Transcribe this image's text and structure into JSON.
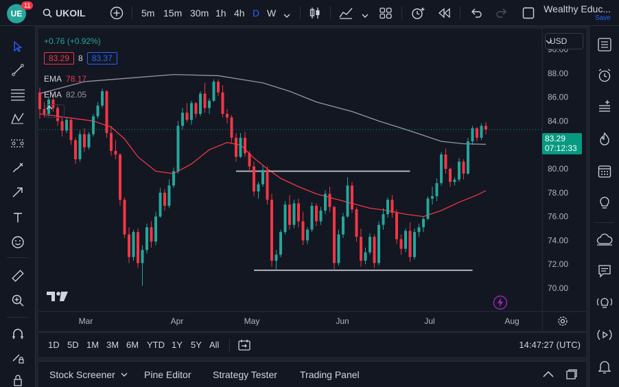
{
  "top": {
    "logo_text": "UE",
    "notifications": "11",
    "symbol": "UKOIL",
    "intervals": [
      "5m",
      "15m",
      "30m",
      "1h",
      "4h",
      "D",
      "W"
    ],
    "active_interval": "D",
    "account_name": "Wealthy Educ...",
    "save_label": "Save"
  },
  "legend": {
    "change": "+0.76 (+0.92%)",
    "bid": "83.29",
    "spread": "8",
    "ask": "83.37",
    "ema1_label": "EMA",
    "ema1_value": "78.17",
    "ema2_label": "EMA",
    "ema2_value": "82.05"
  },
  "currency": "USD",
  "price_tag": {
    "price": "83.29",
    "countdown": "07:12:33"
  },
  "range_buttons": [
    "1D",
    "5D",
    "1M",
    "3M",
    "6M",
    "YTD",
    "1Y",
    "5Y",
    "All"
  ],
  "clock": "14:47:27 (UTC)",
  "panels": [
    "Stock Screener",
    "Pine Editor",
    "Strategy Tester",
    "Trading Panel"
  ],
  "colors": {
    "up": "#26a69a",
    "down": "#f23645",
    "ema_fast": "#f23645",
    "ema_slow": "#9598a1",
    "accent": "#2962ff"
  },
  "chart_data": {
    "type": "candlestick",
    "title": "UKOIL",
    "ylim": [
      68.5,
      91.5
    ],
    "y_ticks": [
      90,
      88,
      86,
      84,
      82,
      80,
      78,
      76,
      74,
      72,
      70
    ],
    "x_ticks": [
      "Mar",
      "Apr",
      "May",
      "Jun",
      "Jul",
      "Aug"
    ],
    "last_price": 83.29,
    "candles": [
      [
        86.4,
        86.8,
        84.2,
        85.0
      ],
      [
        85.0,
        85.6,
        84.3,
        84.6
      ],
      [
        84.6,
        86.0,
        84.4,
        85.8
      ],
      [
        85.8,
        86.3,
        84.8,
        85.1
      ],
      [
        85.1,
        85.3,
        83.6,
        84.0
      ],
      [
        84.0,
        84.4,
        82.7,
        83.2
      ],
      [
        83.2,
        84.3,
        83.0,
        84.1
      ],
      [
        84.1,
        84.2,
        82.0,
        82.4
      ],
      [
        82.4,
        82.6,
        80.4,
        80.8
      ],
      [
        80.8,
        83.2,
        80.6,
        82.9
      ],
      [
        82.9,
        83.4,
        81.4,
        81.8
      ],
      [
        81.8,
        83.1,
        81.6,
        82.9
      ],
      [
        82.9,
        84.6,
        82.7,
        84.4
      ],
      [
        84.4,
        85.6,
        84.2,
        85.3
      ],
      [
        85.3,
        86.7,
        85.1,
        86.5
      ],
      [
        86.5,
        86.6,
        82.6,
        83.0
      ],
      [
        83.0,
        83.6,
        81.1,
        81.5
      ],
      [
        81.5,
        82.4,
        80.8,
        81.2
      ],
      [
        81.2,
        81.3,
        76.9,
        77.4
      ],
      [
        77.4,
        77.6,
        74.2,
        74.5
      ],
      [
        74.5,
        75.1,
        72.1,
        72.6
      ],
      [
        72.6,
        74.9,
        72.3,
        74.7
      ],
      [
        74.7,
        75.0,
        71.7,
        72.1
      ],
      [
        72.1,
        73.6,
        70.2,
        73.2
      ],
      [
        73.2,
        75.4,
        72.9,
        75.1
      ],
      [
        75.1,
        75.6,
        73.4,
        73.9
      ],
      [
        73.9,
        76.4,
        73.6,
        76.0
      ],
      [
        76.0,
        78.4,
        75.9,
        78.0
      ],
      [
        78.0,
        78.3,
        76.5,
        76.9
      ],
      [
        76.9,
        79.1,
        76.7,
        78.6
      ],
      [
        78.6,
        80.1,
        78.4,
        79.8
      ],
      [
        79.8,
        84.0,
        79.6,
        83.6
      ],
      [
        83.6,
        85.1,
        83.3,
        84.7
      ],
      [
        84.7,
        85.5,
        83.9,
        84.1
      ],
      [
        84.1,
        85.7,
        83.7,
        85.5
      ],
      [
        85.5,
        85.6,
        84.3,
        84.6
      ],
      [
        84.6,
        86.5,
        84.4,
        86.3
      ],
      [
        86.3,
        87.2,
        84.7,
        85.1
      ],
      [
        85.1,
        85.9,
        84.6,
        85.7
      ],
      [
        85.7,
        87.5,
        85.6,
        87.3
      ],
      [
        87.3,
        87.5,
        86.1,
        86.4
      ],
      [
        86.4,
        87.0,
        84.3,
        84.6
      ],
      [
        84.6,
        85.0,
        83.8,
        84.3
      ],
      [
        84.3,
        84.5,
        82.2,
        82.6
      ],
      [
        82.6,
        83.0,
        80.6,
        81.0
      ],
      [
        81.0,
        83.0,
        80.9,
        82.6
      ],
      [
        82.6,
        83.1,
        81.0,
        81.3
      ],
      [
        81.3,
        81.5,
        79.8,
        80.2
      ],
      [
        80.2,
        80.6,
        77.7,
        78.1
      ],
      [
        78.1,
        78.9,
        77.5,
        78.7
      ],
      [
        78.7,
        80.3,
        78.5,
        79.9
      ],
      [
        79.9,
        80.2,
        77.0,
        77.4
      ],
      [
        77.4,
        77.9,
        71.8,
        72.3
      ],
      [
        72.3,
        73.2,
        71.5,
        72.8
      ],
      [
        72.8,
        74.9,
        72.6,
        74.7
      ],
      [
        74.7,
        77.3,
        74.5,
        77.0
      ],
      [
        77.0,
        77.8,
        74.9,
        75.3
      ],
      [
        75.3,
        77.4,
        75.0,
        77.1
      ],
      [
        77.1,
        77.5,
        75.1,
        75.6
      ],
      [
        75.6,
        76.4,
        73.6,
        74.0
      ],
      [
        74.0,
        75.1,
        73.7,
        74.9
      ],
      [
        74.9,
        77.2,
        74.7,
        76.9
      ],
      [
        76.9,
        77.1,
        75.2,
        75.6
      ],
      [
        75.6,
        76.8,
        75.3,
        76.5
      ],
      [
        76.5,
        78.2,
        76.2,
        77.9
      ],
      [
        77.9,
        78.5,
        76.4,
        76.8
      ],
      [
        76.8,
        76.9,
        71.6,
        72.1
      ],
      [
        72.1,
        74.9,
        71.9,
        74.5
      ],
      [
        74.5,
        76.3,
        74.2,
        76.0
      ],
      [
        76.0,
        79.3,
        75.9,
        78.6
      ],
      [
        78.6,
        78.9,
        76.3,
        76.6
      ],
      [
        76.6,
        76.8,
        73.9,
        74.3
      ],
      [
        74.3,
        75.0,
        71.8,
        72.3
      ],
      [
        72.3,
        73.4,
        72.0,
        73.0
      ],
      [
        73.0,
        74.6,
        72.8,
        74.3
      ],
      [
        74.3,
        74.5,
        71.7,
        72.1
      ],
      [
        72.1,
        75.6,
        71.9,
        75.3
      ],
      [
        75.3,
        76.7,
        74.9,
        76.2
      ],
      [
        76.2,
        77.6,
        75.9,
        77.4
      ],
      [
        77.4,
        77.8,
        75.9,
        76.3
      ],
      [
        76.3,
        76.6,
        73.7,
        74.1
      ],
      [
        74.1,
        74.5,
        72.8,
        73.3
      ],
      [
        73.3,
        75.0,
        73.0,
        74.8
      ],
      [
        74.8,
        75.5,
        72.2,
        72.6
      ],
      [
        72.6,
        75.0,
        72.4,
        74.7
      ],
      [
        74.7,
        75.4,
        74.3,
        75.1
      ],
      [
        75.1,
        76.0,
        74.7,
        75.8
      ],
      [
        75.8,
        77.7,
        75.7,
        77.5
      ],
      [
        77.5,
        78.5,
        77.0,
        77.7
      ],
      [
        77.7,
        79.2,
        77.3,
        78.8
      ],
      [
        78.8,
        81.4,
        78.6,
        81.2
      ],
      [
        81.2,
        81.7,
        79.6,
        80.0
      ],
      [
        80.0,
        80.1,
        78.5,
        78.9
      ],
      [
        78.9,
        79.3,
        78.6,
        79.1
      ],
      [
        79.1,
        80.9,
        78.9,
        80.6
      ],
      [
        80.6,
        80.8,
        79.1,
        79.6
      ],
      [
        79.6,
        82.6,
        79.5,
        82.3
      ],
      [
        82.3,
        83.6,
        82.0,
        83.4
      ],
      [
        83.4,
        83.5,
        82.3,
        82.6
      ],
      [
        82.6,
        83.8,
        82.4,
        83.6
      ],
      [
        83.6,
        83.9,
        82.9,
        83.29
      ]
    ],
    "ema_fast": [
      [
        0,
        84.6
      ],
      [
        6,
        84.3
      ],
      [
        12,
        84.0
      ],
      [
        16,
        83.5
      ],
      [
        19,
        82.5
      ],
      [
        22,
        81.0
      ],
      [
        26,
        79.8
      ],
      [
        30,
        79.6
      ],
      [
        34,
        80.4
      ],
      [
        38,
        81.6
      ],
      [
        42,
        82.2
      ],
      [
        45,
        82.0
      ],
      [
        48,
        80.9
      ],
      [
        51,
        80.0
      ],
      [
        54,
        79.2
      ],
      [
        58,
        78.5
      ],
      [
        62,
        77.9
      ],
      [
        66,
        77.5
      ],
      [
        70,
        77.1
      ],
      [
        74,
        76.7
      ],
      [
        78,
        76.5
      ],
      [
        82,
        76.2
      ],
      [
        86,
        76.0
      ],
      [
        90,
        76.5
      ],
      [
        94,
        77.2
      ],
      [
        98,
        77.8
      ],
      [
        100,
        78.17
      ]
    ],
    "ema_slow": [
      [
        0,
        86.3
      ],
      [
        10,
        87.3
      ],
      [
        20,
        87.6
      ],
      [
        30,
        87.9
      ],
      [
        40,
        87.8
      ],
      [
        50,
        87.2
      ],
      [
        56,
        86.5
      ],
      [
        62,
        85.6
      ],
      [
        70,
        84.8
      ],
      [
        76,
        84.0
      ],
      [
        82,
        83.3
      ],
      [
        86,
        82.8
      ],
      [
        90,
        82.3
      ],
      [
        95,
        82.1
      ],
      [
        100,
        82.05
      ]
    ],
    "annotations": [
      {
        "type": "horizontal-line",
        "price": 79.8,
        "from_index": 44,
        "to_index": 83
      },
      {
        "type": "horizontal-line",
        "price": 71.5,
        "from_index": 48,
        "to_index": 97
      }
    ]
  }
}
